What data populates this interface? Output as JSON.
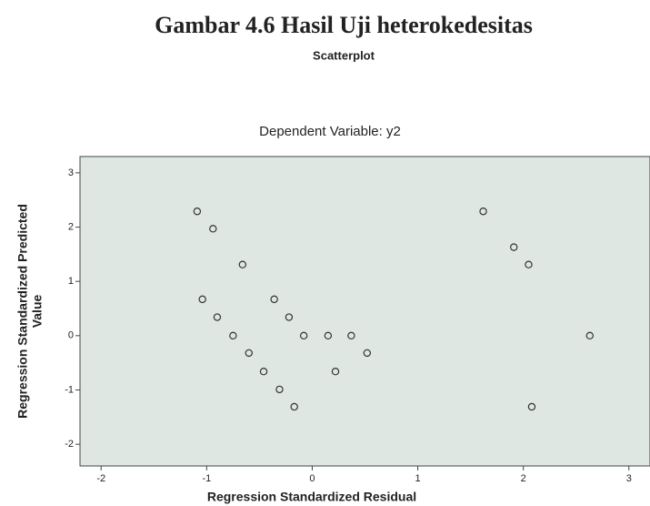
{
  "chart_data": {
    "type": "scatter",
    "title": "Gambar 4.6 Hasil Uji heterokedesitas",
    "subtitle": "Scatterplot",
    "caption": "Dependent Variable: y2",
    "xlabel": "Regression Standardized Residual",
    "ylabel": [
      "Regression Standardized Predicted",
      "Value"
    ],
    "x": [
      -1.09,
      -0.94,
      -0.66,
      -1.04,
      -0.9,
      -0.36,
      -0.22,
      -0.75,
      -0.6,
      -0.46,
      -0.31,
      -0.17,
      -0.08,
      0.15,
      0.37,
      0.52,
      0.22,
      1.62,
      1.91,
      2.05,
      2.08,
      2.63
    ],
    "y": [
      2.29,
      1.97,
      1.31,
      0.67,
      0.34,
      0.67,
      0.34,
      0,
      -0.32,
      -0.66,
      -0.99,
      -1.31,
      0,
      0,
      0,
      -0.32,
      -0.66,
      2.29,
      1.63,
      1.31,
      -1.31,
      0
    ],
    "xlim": [
      -2.2,
      3.2
    ],
    "ylim": [
      -2.4,
      3.3
    ],
    "xticks": [
      -2,
      -1,
      0,
      1,
      2,
      3
    ],
    "yticks": [
      -2,
      -1,
      0,
      1,
      2,
      3
    ],
    "color": "#333333",
    "background": "#dfe7e2"
  }
}
